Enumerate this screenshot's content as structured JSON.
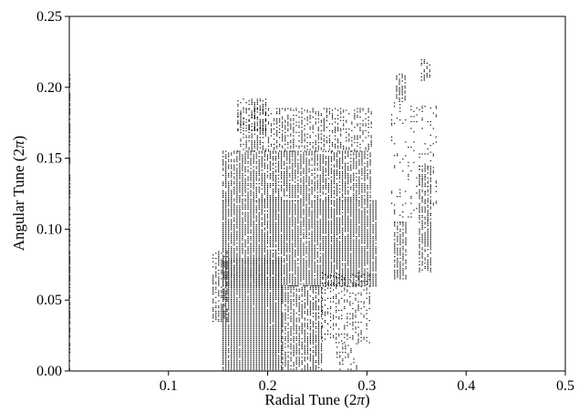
{
  "chart_data": {
    "type": "scatter",
    "title": "",
    "xlabel": "Radial Tune (2",
    "xlabel_symbol": "π",
    "xlabel_close": ")",
    "ylabel": "Angular Tune (2",
    "ylabel_symbol": "π",
    "ylabel_close": ")",
    "xlim": [
      0.0,
      0.5
    ],
    "ylim": [
      0.0,
      0.25
    ],
    "xticks": [
      0.1,
      0.2,
      0.3,
      0.4,
      0.5
    ],
    "xtick_labels": [
      "0.1",
      "0.2",
      "0.3",
      "0.4",
      "0.5"
    ],
    "yticks": [
      0.0,
      0.05,
      0.1,
      0.15,
      0.2,
      0.25
    ],
    "ytick_labels": [
      "0.00",
      "0.05",
      "0.10",
      "0.15",
      "0.20",
      "0.25"
    ],
    "grid": false,
    "legend": "none",
    "marker_color": "#000000",
    "point_spacing": {
      "x": 0.0028,
      "y": 0.0012
    },
    "regions": [
      {
        "name": "left-edge-column",
        "x_range": [
          0.0005,
          0.003
        ],
        "y_range": [
          0.0,
          0.21
        ],
        "density": 0.55
      },
      {
        "name": "main-dense-core",
        "x_range": [
          0.155,
          0.215
        ],
        "y_range": [
          0.0,
          0.08
        ],
        "density": 0.97
      },
      {
        "name": "main-lower-left",
        "x_range": [
          0.145,
          0.16
        ],
        "y_range": [
          0.035,
          0.085
        ],
        "density": 0.6
      },
      {
        "name": "main-mid-core",
        "x_range": [
          0.155,
          0.31
        ],
        "y_range": [
          0.06,
          0.12
        ],
        "density": 0.92
      },
      {
        "name": "main-upper-body",
        "x_range": [
          0.155,
          0.305
        ],
        "y_range": [
          0.12,
          0.155
        ],
        "density": 0.78
      },
      {
        "name": "main-top-fringe",
        "x_range": [
          0.17,
          0.305
        ],
        "y_range": [
          0.155,
          0.185
        ],
        "density": 0.45
      },
      {
        "name": "main-top-tip",
        "x_range": [
          0.17,
          0.2
        ],
        "y_range": [
          0.17,
          0.192
        ],
        "density": 0.5
      },
      {
        "name": "right-column-low",
        "x_range": [
          0.215,
          0.255
        ],
        "y_range": [
          0.0,
          0.06
        ],
        "density": 0.75
      },
      {
        "name": "lower-gap-column",
        "x_range": [
          0.255,
          0.305
        ],
        "y_range": [
          0.02,
          0.07
        ],
        "density": 0.35
      },
      {
        "name": "lower-tail",
        "x_range": [
          0.27,
          0.29
        ],
        "y_range": [
          0.0,
          0.02
        ],
        "density": 0.3
      },
      {
        "name": "island-cluster-a",
        "x_range": [
          0.328,
          0.34
        ],
        "y_range": [
          0.065,
          0.105
        ],
        "density": 0.75
      },
      {
        "name": "island-cluster-b",
        "x_range": [
          0.353,
          0.366
        ],
        "y_range": [
          0.07,
          0.145
        ],
        "density": 0.7
      },
      {
        "name": "island-tip-low",
        "x_range": [
          0.33,
          0.34
        ],
        "y_range": [
          0.19,
          0.21
        ],
        "density": 0.6
      },
      {
        "name": "island-tip-high",
        "x_range": [
          0.355,
          0.365
        ],
        "y_range": [
          0.205,
          0.22
        ],
        "density": 0.4
      },
      {
        "name": "island-sparse",
        "x_range": [
          0.325,
          0.37
        ],
        "y_range": [
          0.105,
          0.19
        ],
        "density": 0.12
      }
    ]
  }
}
